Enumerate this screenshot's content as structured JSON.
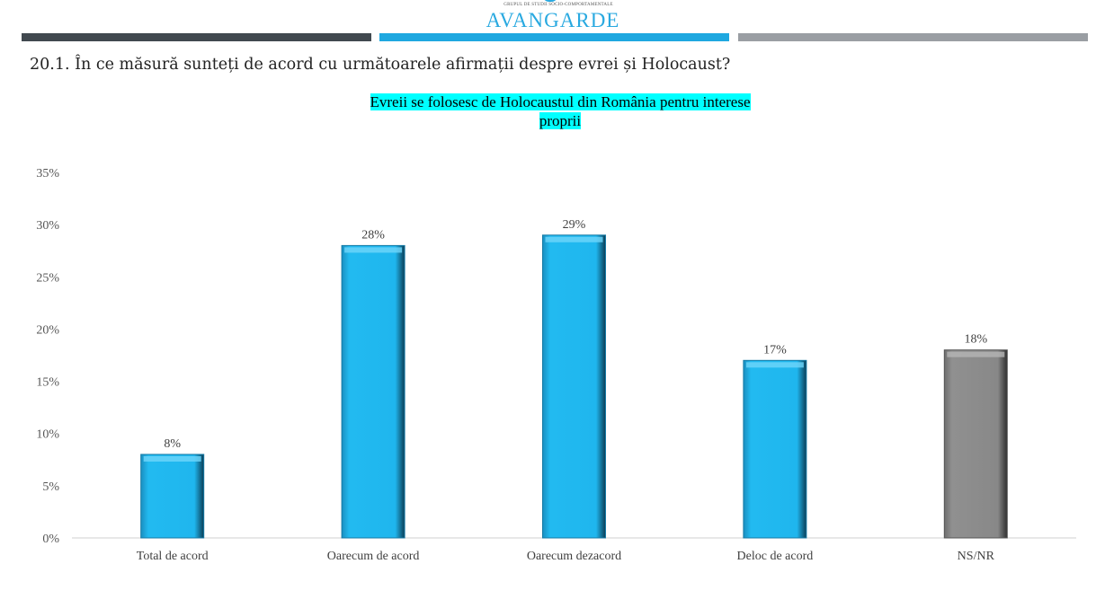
{
  "header": {
    "logo_tagline": "GRUPUL DE STUDII SOCIO-COMPORTAMENTALE",
    "logo": "AVANGARDE",
    "strip_colors": [
      "#41494f",
      "#1fa8e0",
      "#9a9ea3"
    ]
  },
  "question": "20.1. În ce măsură sunteți de acord cu următoarele afirmații despre evrei și Holocaust?",
  "chart_data": {
    "type": "bar",
    "title_line1": "Evreii se folosesc de Holocaustul din România pentru interese",
    "title_line2": "proprii",
    "categories": [
      "Total de acord",
      "Oarecum de acord",
      "Oarecum dezacord",
      "Deloc de acord",
      "NS/NR"
    ],
    "values": [
      8,
      28,
      29,
      17,
      18
    ],
    "labels": [
      "8%",
      "28%",
      "29%",
      "17%",
      "18%"
    ],
    "colors": [
      "#1fb6ee",
      "#1fb6ee",
      "#1fb6ee",
      "#1fb6ee",
      "#8a8a8a"
    ],
    "ylim": [
      0,
      35
    ],
    "yticks": [
      0,
      5,
      10,
      15,
      20,
      25,
      30,
      35
    ],
    "ytick_labels": [
      "0%",
      "5%",
      "10%",
      "15%",
      "20%",
      "25%",
      "30%",
      "35%"
    ],
    "xlabel": "",
    "ylabel": "",
    "grid": false
  }
}
